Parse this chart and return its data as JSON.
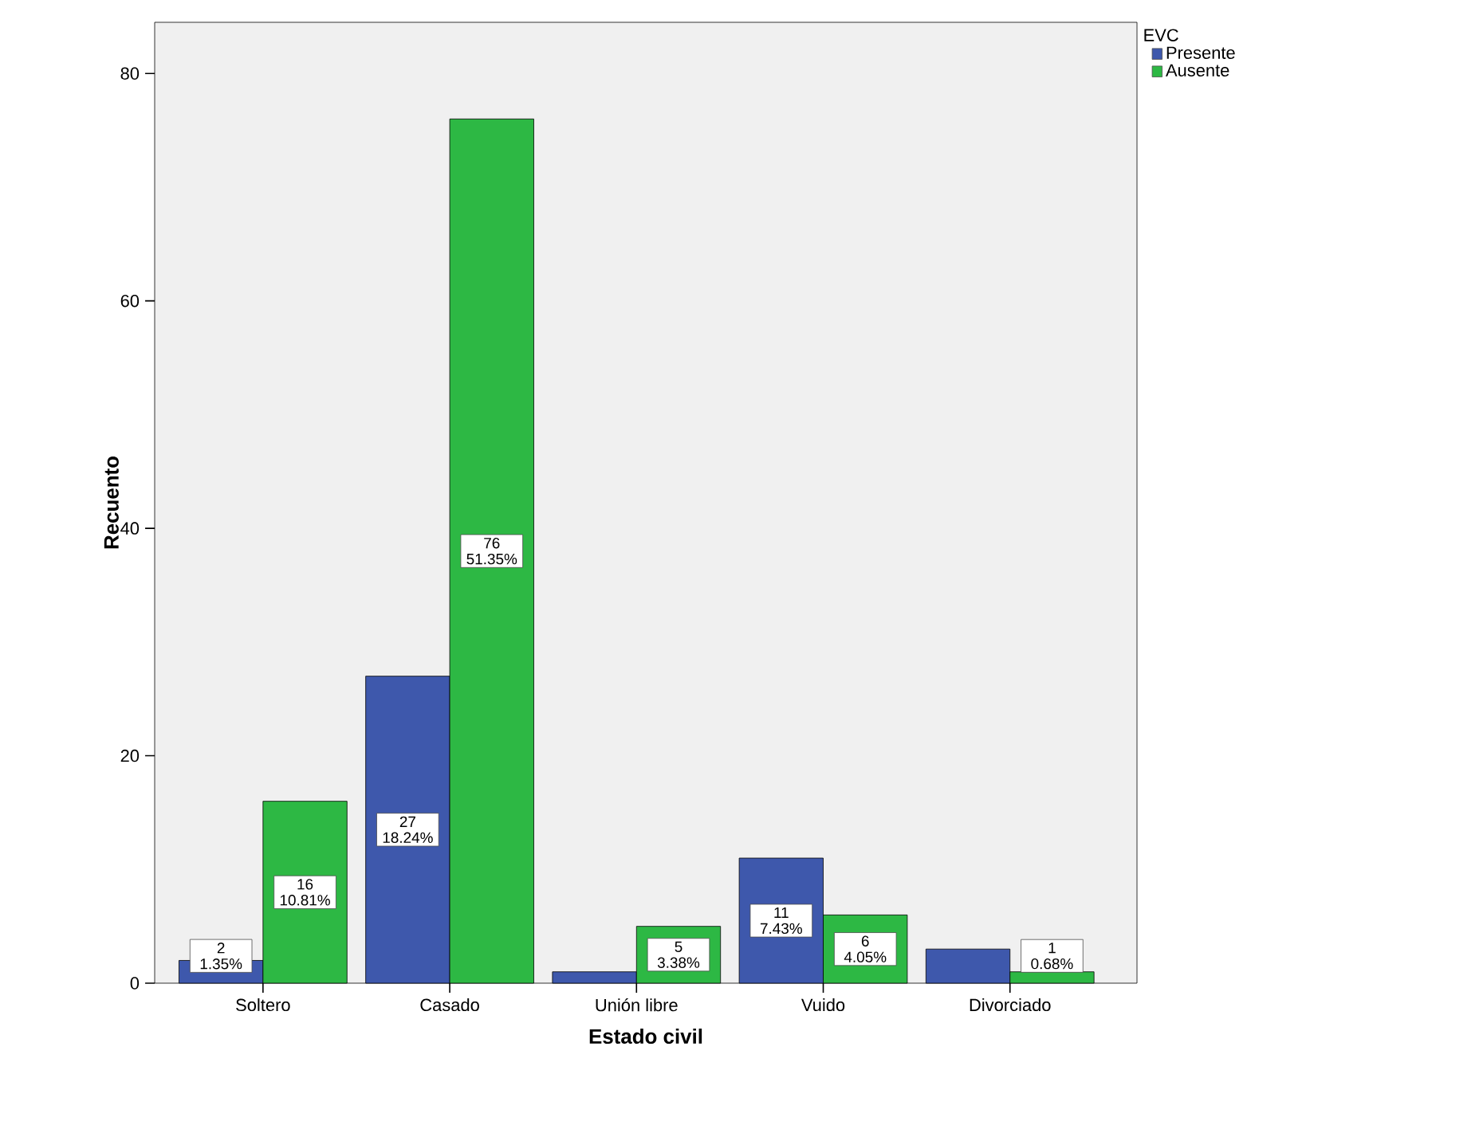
{
  "chart_data": {
    "type": "bar",
    "xlabel": "Estado civil",
    "ylabel": "Recuento",
    "legend_title": "EVC",
    "legend": "top right",
    "categories": [
      "Soltero",
      "Casado",
      "Unión libre",
      "Vuido",
      "Divorciado"
    ],
    "series": [
      {
        "name": "Presente",
        "color": "#3e58ac",
        "values": [
          2,
          27,
          1,
          11,
          3
        ],
        "value_labels": [
          "2 1.35%",
          "27 18.24%",
          null,
          "11 7.43%",
          null
        ]
      },
      {
        "name": "Ausente",
        "color": "#2db844",
        "values": [
          16,
          76,
          5,
          6,
          1
        ],
        "value_labels": [
          "16 10.81%",
          "76 51.35%",
          "5 3.38%",
          "6 4.05%",
          "1 0.68%"
        ]
      }
    ],
    "ylim": [
      0,
      84.5
    ],
    "yticks": [
      0,
      20,
      40,
      60,
      80
    ]
  }
}
